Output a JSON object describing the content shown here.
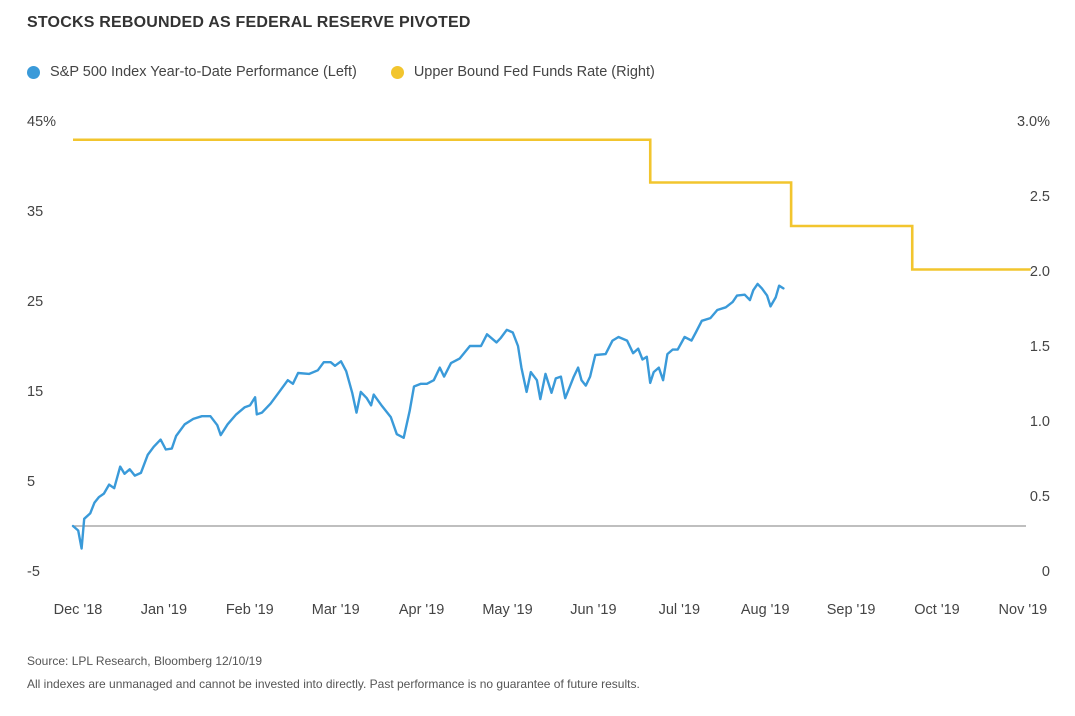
{
  "title": "STOCKS REBOUNDED AS FEDERAL RESERVE PIVOTED",
  "footer": {
    "source": "Source: LPL Research, Bloomberg 12/10/19",
    "disclaimer": "All indexes are unmanaged and cannot be invested into directly. Past performance is no guarantee of future results."
  },
  "colors": {
    "sp500": "#3a9ad9",
    "fed": "#f2c52e",
    "zero_line": "#999999"
  },
  "chart_data": {
    "type": "line",
    "legend": {
      "sp500": "S&P 500 Index Year-to-Date Performance (Left)",
      "fed": "Upper Bound Fed Funds Rate (Right)"
    },
    "x_ticks": [
      "Dec '18",
      "Jan '19",
      "Feb '19",
      "Mar '19",
      "Apr '19",
      "May '19",
      "Jun '19",
      "Jul '19",
      "Aug '19",
      "Sep '19",
      "Oct '19",
      "Nov '19"
    ],
    "y_left": {
      "ticks": [
        "45%",
        "35",
        "25",
        "15",
        "5",
        "-5"
      ],
      "values": [
        45,
        35,
        25,
        15,
        5,
        -5
      ],
      "range": [
        -5,
        45
      ]
    },
    "y_right": {
      "ticks": [
        "3.0%",
        "2.5",
        "2.0",
        "1.5",
        "1.0",
        "0.5",
        "0"
      ],
      "values": [
        3.0,
        2.5,
        2.0,
        1.5,
        1.0,
        0.5,
        0
      ],
      "range": [
        0,
        3.0
      ]
    },
    "series": [
      {
        "name": "S&P 500 Index Year-to-Date Performance (Left)",
        "axis": "left",
        "points": [
          [
            0,
            0
          ],
          [
            0.06,
            -0.5
          ],
          [
            0.1,
            -2.5
          ],
          [
            0.13,
            0.8
          ],
          [
            0.2,
            1.4
          ],
          [
            0.25,
            2.6
          ],
          [
            0.3,
            3.2
          ],
          [
            0.36,
            3.6
          ],
          [
            0.42,
            4.6
          ],
          [
            0.48,
            4.2
          ],
          [
            0.55,
            6.6
          ],
          [
            0.6,
            5.8
          ],
          [
            0.66,
            6.3
          ],
          [
            0.72,
            5.6
          ],
          [
            0.79,
            5.9
          ],
          [
            0.87,
            7.9
          ],
          [
            0.94,
            8.8
          ],
          [
            1.02,
            9.6
          ],
          [
            1.08,
            8.5
          ],
          [
            1.15,
            8.6
          ],
          [
            1.2,
            10.0
          ],
          [
            1.3,
            11.3
          ],
          [
            1.4,
            11.9
          ],
          [
            1.5,
            12.2
          ],
          [
            1.6,
            12.2
          ],
          [
            1.68,
            11.2
          ],
          [
            1.72,
            10.1
          ],
          [
            1.8,
            11.3
          ],
          [
            1.9,
            12.4
          ],
          [
            2.0,
            13.2
          ],
          [
            2.06,
            13.4
          ],
          [
            2.12,
            14.3
          ],
          [
            2.14,
            12.4
          ],
          [
            2.2,
            12.6
          ],
          [
            2.3,
            13.6
          ],
          [
            2.4,
            14.9
          ],
          [
            2.5,
            16.2
          ],
          [
            2.56,
            15.8
          ],
          [
            2.62,
            17.0
          ],
          [
            2.75,
            16.9
          ],
          [
            2.85,
            17.3
          ],
          [
            2.92,
            18.2
          ],
          [
            3.0,
            18.2
          ],
          [
            3.05,
            17.8
          ],
          [
            3.12,
            18.3
          ],
          [
            3.18,
            17.2
          ],
          [
            3.25,
            14.8
          ],
          [
            3.3,
            12.6
          ],
          [
            3.35,
            14.9
          ],
          [
            3.42,
            14.2
          ],
          [
            3.47,
            13.4
          ],
          [
            3.5,
            14.6
          ],
          [
            3.6,
            13.3
          ],
          [
            3.7,
            12.1
          ],
          [
            3.77,
            10.2
          ],
          [
            3.85,
            9.8
          ],
          [
            3.92,
            12.8
          ],
          [
            3.97,
            15.5
          ],
          [
            4.05,
            15.8
          ],
          [
            4.12,
            15.8
          ],
          [
            4.2,
            16.2
          ],
          [
            4.27,
            17.6
          ],
          [
            4.32,
            16.6
          ],
          [
            4.4,
            18.1
          ],
          [
            4.5,
            18.6
          ],
          [
            4.62,
            20.0
          ],
          [
            4.75,
            20.0
          ],
          [
            4.82,
            21.3
          ],
          [
            4.93,
            20.4
          ],
          [
            4.98,
            20.9
          ],
          [
            5.05,
            21.8
          ],
          [
            5.12,
            21.5
          ],
          [
            5.18,
            20.0
          ],
          [
            5.22,
            17.6
          ],
          [
            5.28,
            14.9
          ],
          [
            5.33,
            17.1
          ],
          [
            5.4,
            16.2
          ],
          [
            5.44,
            14.1
          ],
          [
            5.5,
            16.9
          ],
          [
            5.57,
            14.8
          ],
          [
            5.62,
            16.4
          ],
          [
            5.68,
            16.6
          ],
          [
            5.73,
            14.2
          ],
          [
            5.78,
            15.4
          ],
          [
            5.83,
            16.6
          ],
          [
            5.88,
            17.6
          ],
          [
            5.92,
            16.2
          ],
          [
            5.97,
            15.6
          ],
          [
            6.02,
            16.6
          ],
          [
            6.08,
            19.0
          ],
          [
            6.2,
            19.1
          ],
          [
            6.28,
            20.6
          ],
          [
            6.35,
            21.0
          ],
          [
            6.45,
            20.6
          ],
          [
            6.52,
            19.2
          ],
          [
            6.58,
            19.7
          ],
          [
            6.63,
            18.5
          ],
          [
            6.68,
            18.8
          ],
          [
            6.72,
            15.9
          ],
          [
            6.76,
            17.1
          ],
          [
            6.82,
            17.6
          ],
          [
            6.87,
            16.2
          ],
          [
            6.92,
            19.1
          ],
          [
            6.98,
            19.6
          ],
          [
            7.04,
            19.6
          ],
          [
            7.12,
            21.0
          ],
          [
            7.2,
            20.6
          ],
          [
            7.25,
            21.5
          ],
          [
            7.32,
            22.8
          ],
          [
            7.42,
            23.1
          ],
          [
            7.5,
            24.0
          ],
          [
            7.6,
            24.3
          ],
          [
            7.68,
            24.9
          ],
          [
            7.73,
            25.6
          ],
          [
            7.82,
            25.7
          ],
          [
            7.88,
            25.1
          ],
          [
            7.92,
            26.2
          ],
          [
            7.97,
            26.9
          ],
          [
            8.02,
            26.4
          ],
          [
            8.08,
            25.6
          ],
          [
            8.12,
            24.4
          ],
          [
            8.18,
            25.4
          ],
          [
            8.22,
            26.7
          ],
          [
            8.27,
            26.4
          ]
        ]
      },
      {
        "name": "Upper Bound Fed Funds Rate (Right)",
        "axis": "right",
        "step_points": [
          [
            0,
            2.875
          ],
          [
            6.72,
            2.875
          ],
          [
            6.72,
            2.59
          ],
          [
            8.36,
            2.59
          ],
          [
            8.36,
            2.3
          ],
          [
            9.77,
            2.3
          ],
          [
            9.77,
            2.01
          ],
          [
            11.15,
            2.01
          ]
        ]
      }
    ],
    "zero_line": 0
  }
}
